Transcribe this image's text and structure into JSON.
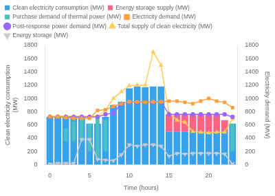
{
  "chart_data": {
    "type": "bar",
    "x": [
      0,
      1,
      2,
      3,
      4,
      5,
      6,
      7,
      8,
      9,
      10,
      11,
      12,
      13,
      14,
      15,
      16,
      17,
      18,
      19,
      20,
      21,
      22,
      23
    ],
    "xlabel": "Time (hours)",
    "ylabel": "Clean electricity consumption\n(MW)",
    "y2label": "Electricity demand (MW)",
    "xlim": [
      -0.6,
      23.6
    ],
    "xticks": [
      0,
      5,
      10,
      15,
      20
    ],
    "ylim": [
      0,
      1800
    ],
    "yticks": [
      0,
      200,
      400,
      600,
      800,
      1000,
      1200,
      1400,
      1600,
      1800
    ],
    "y2lim": [
      0,
      1800
    ],
    "y2ticks": [
      0,
      200,
      400,
      600,
      800,
      1000,
      1200,
      1400,
      1600,
      1800
    ],
    "stacked": true,
    "grid": false,
    "legend": "upper left",
    "series": [
      {
        "name": "Clean electricity consumption (MW)",
        "type": "bar",
        "color": "#36a2eb",
        "values": [
          720,
          720,
          720,
          720,
          720,
          620,
          620,
          720,
          900,
          950,
          1150,
          1180,
          1170,
          1180,
          1180,
          500,
          500,
          500,
          500,
          500,
          500,
          500,
          500,
          620
        ]
      },
      {
        "name": "Energy storage supply (MW)",
        "type": "bar",
        "color": "#ff6384",
        "values": [
          0,
          0,
          0,
          0,
          0,
          0,
          0,
          0,
          0,
          0,
          0,
          0,
          0,
          0,
          0,
          260,
          260,
          260,
          260,
          260,
          260,
          260,
          170,
          0
        ]
      },
      {
        "name": "Purchase demand of thermal power (MW)",
        "type": "bar",
        "color": "#4bc0c0",
        "bottom": [
          350,
          350,
          350,
          350,
          350,
          200,
          100,
          200,
          0,
          0,
          0,
          0,
          0,
          0,
          0,
          0,
          0,
          0,
          0,
          0,
          0,
          0,
          0,
          200
        ],
        "values": [
          0,
          0,
          200,
          300,
          350,
          420,
          600,
          480,
          0,
          0,
          0,
          0,
          0,
          0,
          0,
          0,
          0,
          0,
          0,
          0,
          0,
          0,
          0,
          420
        ]
      },
      {
        "name": "Electricity demand (MW)",
        "type": "line",
        "axis": "y2",
        "marker": "square",
        "line_style": "solid",
        "color": "#ff9f40",
        "values": [
          720,
          720,
          710,
          700,
          700,
          700,
          820,
          830,
          880,
          920,
          950,
          950,
          940,
          950,
          950,
          960,
          960,
          940,
          920,
          960,
          1000,
          960,
          940,
          860
        ]
      },
      {
        "name": "Post-response power demand (MW)",
        "type": "line",
        "axis": "y2",
        "marker": "circle",
        "line_style": "solid",
        "color": "#9966ff",
        "values": [
          720,
          720,
          720,
          720,
          720,
          720,
          720,
          760,
          780,
          920,
          950,
          950,
          940,
          950,
          950,
          760,
          760,
          760,
          760,
          760,
          760,
          760,
          760,
          720
        ]
      },
      {
        "name": "Total supply of clean electricity (MW)",
        "type": "line",
        "axis": "y2",
        "marker": "triangle-up",
        "line_style": "solid",
        "color": "#ffcd56",
        "values": [
          730,
          730,
          730,
          730,
          730,
          730,
          730,
          820,
          1000,
          1100,
          1190,
          1200,
          1200,
          1700,
          1500,
          780,
          670,
          640,
          500,
          490,
          480,
          490,
          490,
          690
        ]
      },
      {
        "name": "Energy storage (MW)",
        "type": "line",
        "axis": "y2",
        "marker": "triangle-down",
        "line_style": "solid",
        "color": "#c9cbcf",
        "values": [
          10,
          20,
          20,
          20,
          380,
          380,
          80,
          70,
          60,
          150,
          300,
          280,
          300,
          300,
          280,
          130,
          170,
          160,
          170,
          170,
          170,
          170,
          160,
          10
        ]
      }
    ]
  }
}
